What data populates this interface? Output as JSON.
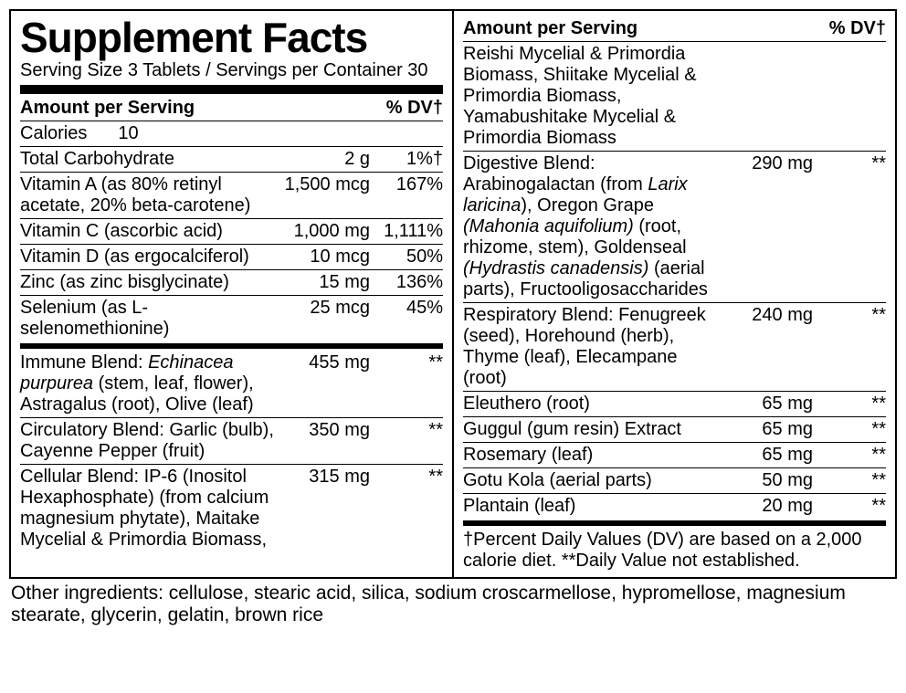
{
  "title": "Supplement Facts",
  "serving": "Serving Size 3 Tablets / Servings per Container 30",
  "hdr_amount": "Amount per Serving",
  "hdr_dv": "% DV†",
  "left": {
    "calories": {
      "label": "Calories",
      "amt": "10"
    },
    "rows1": [
      {
        "name": "Total Carbohydrate",
        "amt": "2 g",
        "dv": "1%†"
      },
      {
        "name": "Vitamin A (as 80% retinyl acetate, 20% beta-carotene)",
        "amt": "1,500 mcg",
        "dv": "167%"
      },
      {
        "name": "Vitamin C (ascorbic acid)",
        "amt": "1,000 mg",
        "dv": "1,111%"
      },
      {
        "name": "Vitamin D (as ergocalciferol)",
        "amt": "10 mcg",
        "dv": "50%"
      },
      {
        "name": "Zinc (as zinc bisglycinate)",
        "amt": "15 mg",
        "dv": "136%"
      },
      {
        "name": "Selenium (as L-selenomethionine)",
        "amt": "25 mcg",
        "dv": "45%"
      }
    ],
    "rows2": [
      {
        "name": "Immune Blend: <span class='it'>Echinacea purpurea</span> (stem, leaf, flower), Astragalus (root), Olive (leaf)",
        "amt": "455 mg",
        "dv": "**"
      },
      {
        "name": "Circulatory Blend: Garlic (bulb), Cayenne Pepper (fruit)",
        "amt": "350 mg",
        "dv": "**"
      },
      {
        "name": "Cellular Blend: IP-6 (Inositol Hexaphosphate) (from calcium magnesium phytate), Maitake Mycelial & Primordia Biomass,",
        "amt": "315 mg",
        "dv": "**"
      }
    ]
  },
  "right": {
    "cont": "Reishi Mycelial & Primordia Biomass, Shiitake Mycelial & Primordia Biomass, Yamabushitake Mycelial & Primordia Biomass",
    "rows": [
      {
        "name": "Digestive Blend: Arabinogalactan (from <span class='it'>Larix laricina</span>), Oregon Grape <span class='it'>(Mahonia aquifolium)</span> (root, rhizome, stem), Goldenseal <span class='it'>(Hydrastis canadensis)</span> (aerial parts), Fructooligosaccharides",
        "amt": "290 mg",
        "dv": "**"
      },
      {
        "name": "Respiratory Blend: Fenugreek (seed), Horehound (herb), Thyme (leaf), Elecampane (root)",
        "amt": "240 mg",
        "dv": "**"
      },
      {
        "name": "Eleuthero (root)",
        "amt": "65 mg",
        "dv": "**"
      },
      {
        "name": "Guggul (gum resin) Extract",
        "amt": "65 mg",
        "dv": "**"
      },
      {
        "name": "Rosemary (leaf)",
        "amt": "65 mg",
        "dv": "**"
      },
      {
        "name": "Gotu Kola (aerial parts)",
        "amt": "50 mg",
        "dv": "**"
      },
      {
        "name": "Plantain (leaf)",
        "amt": "20 mg",
        "dv": "**"
      }
    ],
    "footnote": "†Percent Daily Values (DV) are based on a 2,000 calorie diet. **Daily Value not established."
  },
  "other": "Other ingredients: cellulose, stearic acid, silica, sodium croscarmellose, hypromellose, magnesium stearate, glycerin, gelatin, brown rice"
}
